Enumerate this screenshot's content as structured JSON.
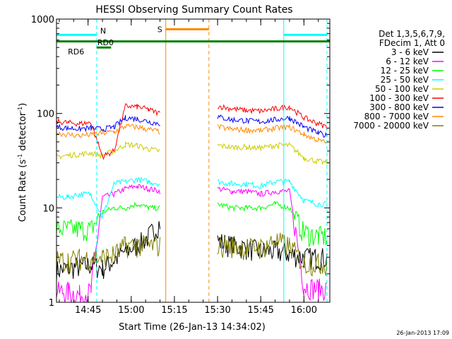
{
  "chart_data": {
    "type": "line",
    "title": "HESSI Observing Summary Count Rates",
    "xlabel": "Start Time (26-Jan-13 14:34:02)",
    "ylabel": "Count Rate (s⁻¹ detector⁻¹)",
    "ylabel_parts": [
      "Count Rate (s",
      "-1",
      " detector",
      "-1",
      ")"
    ],
    "y_scale": "log",
    "ylim": [
      1,
      1000
    ],
    "y_ticks": [
      {
        "value": 1,
        "label": "1"
      },
      {
        "value": 10,
        "label": "10"
      },
      {
        "value": 100,
        "label": "100"
      },
      {
        "value": 1000,
        "label": "1000"
      }
    ],
    "xlim": [
      "14:34:02",
      "16:09:00"
    ],
    "x_ticks": [
      "14:45",
      "15:00",
      "15:15",
      "15:30",
      "15:45",
      "16:00"
    ],
    "legend_header": [
      "Det 1,3,5,6,7,9,",
      "FDecim 1, Att 0"
    ],
    "legend_placement": "right",
    "series": [
      {
        "name": "3 - 6 keV",
        "color": "#000000",
        "segments": [
          {
            "x": [
              "14:34",
              "14:38",
              "14:42",
              "14:46",
              "14:50",
              "14:54",
              "14:58",
              "15:02",
              "15:06",
              "15:10"
            ],
            "y": [
              2.2,
              2.3,
              2.4,
              2.5,
              2.3,
              2.8,
              3.5,
              4.0,
              5.0,
              7.0
            ]
          },
          {
            "x": [
              "15:30",
              "15:35",
              "15:40",
              "15:45",
              "15:50",
              "15:55",
              "16:00",
              "16:05",
              "16:08"
            ],
            "y": [
              4.5,
              4.0,
              3.8,
              3.5,
              3.5,
              3.3,
              3.0,
              3.0,
              3.0
            ]
          }
        ]
      },
      {
        "name": "6 - 12 keV",
        "color": "#ff00ff",
        "segments": [
          {
            "x": [
              "14:34",
              "14:38",
              "14:42",
              "14:46",
              "14:50",
              "14:54",
              "14:58",
              "15:02",
              "15:06",
              "15:10"
            ],
            "y": [
              1.3,
              1.3,
              1.2,
              1.3,
              13.0,
              14.0,
              16.0,
              17.0,
              16.0,
              15.0
            ]
          },
          {
            "x": [
              "15:30",
              "15:35",
              "15:40",
              "15:45",
              "15:50",
              "15:55",
              "16:00",
              "16:05",
              "16:08"
            ],
            "y": [
              16.0,
              15.0,
              15.0,
              14.0,
              15.0,
              15.0,
              1.5,
              1.4,
              1.4
            ]
          }
        ]
      },
      {
        "name": "12 - 25 keV",
        "color": "#00ff00",
        "segments": [
          {
            "x": [
              "14:34",
              "14:38",
              "14:42",
              "14:46",
              "14:50",
              "14:54",
              "14:58",
              "15:02",
              "15:06",
              "15:10"
            ],
            "y": [
              6.0,
              6.0,
              6.0,
              6.0,
              9.0,
              10.0,
              10.0,
              11.0,
              10.0,
              10.0
            ]
          },
          {
            "x": [
              "15:30",
              "15:35",
              "15:40",
              "15:45",
              "15:50",
              "15:55",
              "16:00",
              "16:05",
              "16:08"
            ],
            "y": [
              11.0,
              10.0,
              10.0,
              10.0,
              11.0,
              10.0,
              5.5,
              5.0,
              5.0
            ]
          }
        ]
      },
      {
        "name": "25 - 50 keV",
        "color": "#00ffff",
        "segments": [
          {
            "x": [
              "14:34",
              "14:38",
              "14:42",
              "14:46",
              "14:50",
              "14:54",
              "14:58",
              "15:02",
              "15:06",
              "15:10"
            ],
            "y": [
              13.0,
              13.0,
              14.0,
              14.0,
              8.0,
              18.0,
              19.0,
              20.0,
              19.0,
              18.0
            ]
          },
          {
            "x": [
              "15:30",
              "15:35",
              "15:40",
              "15:45",
              "15:50",
              "15:55",
              "16:00",
              "16:05",
              "16:08"
            ],
            "y": [
              19.0,
              18.0,
              18.0,
              17.0,
              19.0,
              19.0,
              12.0,
              11.0,
              11.0
            ]
          }
        ]
      },
      {
        "name": "50 - 100 keV",
        "color": "#cccc00",
        "segments": [
          {
            "x": [
              "14:34",
              "14:38",
              "14:42",
              "14:46",
              "14:50",
              "14:54",
              "14:58",
              "15:02",
              "15:06",
              "15:10"
            ],
            "y": [
              35.0,
              36.0,
              37.0,
              38.0,
              36.0,
              40.0,
              47.0,
              46.0,
              42.0,
              40.0
            ]
          },
          {
            "x": [
              "15:30",
              "15:35",
              "15:40",
              "15:45",
              "15:50",
              "15:55",
              "16:00",
              "16:05",
              "16:08"
            ],
            "y": [
              46.0,
              44.0,
              44.0,
              43.0,
              46.0,
              46.0,
              34.0,
              31.0,
              30.0
            ]
          }
        ]
      },
      {
        "name": "100 - 300 keV",
        "color": "#ff0000",
        "segments": [
          {
            "x": [
              "14:34",
              "14:38",
              "14:42",
              "14:46",
              "14:50",
              "14:54",
              "14:58",
              "15:02",
              "15:06",
              "15:10"
            ],
            "y": [
              82.0,
              80.0,
              78.0,
              80.0,
              35.0,
              40.0,
              120.0,
              118.0,
              110.0,
              100.0
            ]
          },
          {
            "x": [
              "15:30",
              "15:35",
              "15:40",
              "15:45",
              "15:50",
              "15:55",
              "16:00",
              "16:05",
              "16:08"
            ],
            "y": [
              120.0,
              112.0,
              108.0,
              106.0,
              112.0,
              118.0,
              90.0,
              78.0,
              72.0
            ]
          }
        ]
      },
      {
        "name": "300 - 800 keV",
        "color": "#0000ff",
        "segments": [
          {
            "x": [
              "14:34",
              "14:38",
              "14:42",
              "14:46",
              "14:50",
              "14:54",
              "14:58",
              "15:02",
              "15:06",
              "15:10"
            ],
            "y": [
              72.0,
              70.0,
              69.0,
              70.0,
              68.0,
              72.0,
              90.0,
              88.0,
              82.0,
              78.0
            ]
          },
          {
            "x": [
              "15:30",
              "15:35",
              "15:40",
              "15:45",
              "15:50",
              "15:55",
              "16:00",
              "16:05",
              "16:08"
            ],
            "y": [
              92.0,
              86.0,
              84.0,
              82.0,
              86.0,
              90.0,
              72.0,
              62.0,
              58.0
            ]
          }
        ]
      },
      {
        "name": "800 - 7000 keV",
        "color": "#ff8800",
        "segments": [
          {
            "x": [
              "14:34",
              "14:38",
              "14:42",
              "14:46",
              "14:50",
              "14:54",
              "14:58",
              "15:02",
              "15:06",
              "15:10"
            ],
            "y": [
              62.0,
              60.0,
              58.0,
              60.0,
              62.0,
              64.0,
              73.0,
              72.0,
              68.0,
              64.0
            ]
          },
          {
            "x": [
              "15:30",
              "15:35",
              "15:40",
              "15:45",
              "15:50",
              "15:55",
              "16:00",
              "16:05",
              "16:08"
            ],
            "y": [
              72.0,
              68.0,
              67.0,
              66.0,
              70.0,
              72.0,
              60.0,
              52.0,
              49.0
            ]
          }
        ]
      },
      {
        "name": "7000 - 20000 keV",
        "color": "#808000",
        "segments": [
          {
            "x": [
              "14:34",
              "14:38",
              "14:42",
              "14:46",
              "14:50",
              "14:54",
              "14:58",
              "15:02",
              "15:06",
              "15:10"
            ],
            "y": [
              2.8,
              2.8,
              2.9,
              3.0,
              3.0,
              3.2,
              4.0,
              4.0,
              4.0,
              4.0
            ]
          },
          {
            "x": [
              "15:30",
              "15:35",
              "15:40",
              "15:45",
              "15:50",
              "15:55",
              "16:00",
              "16:05",
              "16:08"
            ],
            "y": [
              4.0,
              4.0,
              3.8,
              3.8,
              4.5,
              4.0,
              2.6,
              2.6,
              2.6
            ]
          }
        ]
      }
    ],
    "markers": [
      {
        "label": "N",
        "color": "#00ffff",
        "lines": [
          {
            "x": "14:34:02",
            "style": "solid"
          },
          {
            "x": "14:48:00",
            "style": "dashed"
          },
          {
            "x": "15:53:00",
            "style": "solid"
          },
          {
            "x": "16:08:00",
            "style": "dashed"
          }
        ],
        "bars": [
          {
            "x": [
              "14:34:02",
              "14:48:00"
            ],
            "y": 680
          },
          {
            "x": [
              "15:53:00",
              "16:08:00"
            ],
            "y": 680
          }
        ]
      },
      {
        "label": "S",
        "color": "#ff8800",
        "lines": [
          {
            "x": "15:12:00",
            "style": "solid"
          },
          {
            "x": "15:27:00",
            "style": "dashed"
          }
        ],
        "bars": [
          {
            "x": [
              "15:12:00",
              "15:27:00"
            ],
            "y": 780
          }
        ]
      },
      {
        "label": "RD6",
        "color": "#008000",
        "lines": [],
        "bars": [
          {
            "x": [
              "14:34:02",
              "16:09:00"
            ],
            "y": 580
          }
        ]
      },
      {
        "label": "RD0",
        "color": "#008000",
        "lines": [],
        "bars": [
          {
            "x": [
              "14:48:00",
              "14:53:00"
            ],
            "y": 500
          }
        ]
      }
    ],
    "gap": {
      "x": [
        "15:10:00",
        "15:30:00"
      ]
    },
    "timestamp": "26-Jan-2013 17:09"
  }
}
